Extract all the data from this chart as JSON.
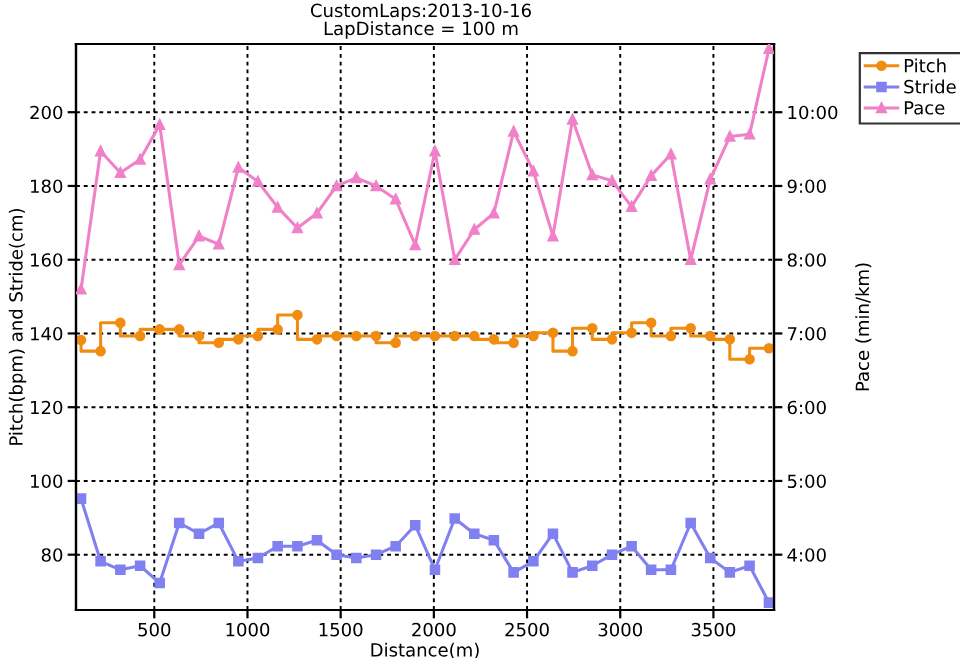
{
  "chart_data": {
    "type": "line",
    "title": "CustomLaps:2013-10-16",
    "subtitle": "LapDistance = 100 m",
    "xlabel": "Distance(m)",
    "ylabel": "Pitch(bpm) and Stride(cm)",
    "y2label": "Pace (min/km)",
    "x": [
      107,
      212,
      318,
      424,
      529,
      634,
      740,
      846,
      951,
      1056,
      1162,
      1268,
      1373,
      1478,
      1584,
      1690,
      1795,
      1900,
      2006,
      2112,
      2217,
      2322,
      2428,
      2534,
      2639,
      2744,
      2850,
      2956,
      3061,
      3166,
      3272,
      3378,
      3483,
      3588,
      3694,
      3798
    ],
    "series": [
      {
        "name": "Pitch",
        "type": "step",
        "color": "#f08c10",
        "marker": "circle",
        "values": [
          138.2,
          135.2,
          142.9,
          139.3,
          141.1,
          141.1,
          139.3,
          137.5,
          138.4,
          139.3,
          141.1,
          145,
          138.4,
          139.3,
          139.3,
          139.3,
          137.5,
          139.3,
          139.3,
          139.3,
          139.3,
          138.4,
          137.5,
          139.3,
          140.2,
          135.2,
          141.4,
          138.4,
          140.2,
          142.9,
          139.3,
          141.4,
          139.3,
          138.4,
          133,
          136
        ]
      },
      {
        "name": "Stride",
        "color": "#8080f0",
        "marker": "square",
        "values": [
          95.2,
          78.2,
          75.9,
          77,
          72.3,
          88.6,
          85.7,
          88.6,
          78.2,
          79.1,
          82.3,
          82.3,
          83.9,
          80,
          79.1,
          80,
          82.3,
          88,
          75.9,
          89.8,
          85.7,
          83.9,
          75.2,
          78.2,
          85.7,
          75.2,
          77,
          80,
          82.3,
          75.9,
          75.9,
          88.6,
          79.1,
          75.2,
          77,
          67
        ]
      },
      {
        "name": "Pace",
        "axis": "y2",
        "color": "#f080c8",
        "marker": "triangle",
        "values": [
          7.6,
          9.47,
          9.18,
          9.36,
          9.83,
          7.93,
          8.32,
          8.21,
          9.25,
          9.06,
          8.71,
          8.43,
          8.63,
          9.0,
          9.11,
          9.0,
          8.82,
          8.2,
          9.47,
          8.0,
          8.41,
          8.63,
          9.74,
          9.2,
          8.32,
          9.9,
          9.15,
          9.07,
          8.72,
          9.14,
          9.43,
          8.0,
          9.09,
          9.67,
          9.7,
          10.86
        ]
      }
    ],
    "xlim": [
      80,
      3825
    ],
    "xticks": [
      500,
      1000,
      1500,
      2000,
      2500,
      3000,
      3500
    ],
    "ylim": [
      65,
      218.5
    ],
    "yticks": [
      80,
      100,
      120,
      140,
      160,
      180,
      200
    ],
    "y2lim": [
      3.25,
      10.925
    ],
    "y2ticks": [
      {
        "value": 4,
        "label": "4:00"
      },
      {
        "value": 5,
        "label": "5:00"
      },
      {
        "value": 6,
        "label": "6:00"
      },
      {
        "value": 7,
        "label": "7:00"
      },
      {
        "value": 8,
        "label": "8:00"
      },
      {
        "value": 9,
        "label": "9:00"
      },
      {
        "value": 10,
        "label": "10:00"
      }
    ],
    "grid": true,
    "legend": "top right",
    "line_style": "solid"
  }
}
